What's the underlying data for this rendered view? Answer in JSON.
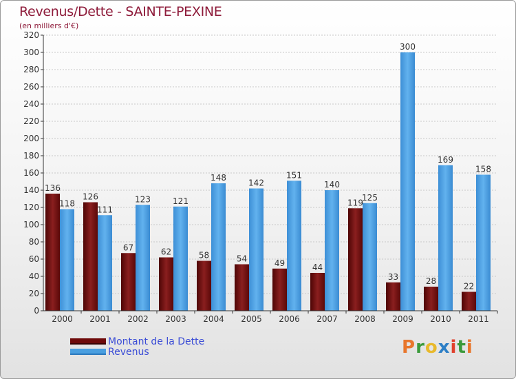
{
  "title": "Revenus/Dette - SAINTE-PEXINE",
  "subtitle": "(en milliers d'€)",
  "brand": [
    "P",
    "r",
    "o",
    "x",
    "i",
    "t",
    "i"
  ],
  "colors": {
    "dette": "#6e0a0a",
    "revenus": "#4a9fe0",
    "title": "#8e1b3a",
    "legend_text": "#3a4cd6",
    "brand_letters": [
      "#e8762c",
      "#3b9a3b",
      "#e8b92c",
      "#2d7fc6",
      "#e0402c",
      "#3b9a3b",
      "#e8762c"
    ]
  },
  "chart_data": {
    "type": "bar",
    "categories": [
      "2000",
      "2001",
      "2002",
      "2003",
      "2004",
      "2005",
      "2006",
      "2007",
      "2008",
      "2009",
      "2010",
      "2011"
    ],
    "series": [
      {
        "name": "Montant de la Dette",
        "values": [
          136,
          126,
          67,
          62,
          58,
          54,
          49,
          44,
          119,
          33,
          28,
          22
        ]
      },
      {
        "name": "Revenus",
        "values": [
          118,
          111,
          123,
          121,
          148,
          142,
          151,
          140,
          125,
          300,
          169,
          158
        ]
      }
    ],
    "ylim": [
      0,
      320
    ],
    "yticks": [
      "0",
      "20",
      "40",
      "60",
      "80",
      "100",
      "120",
      "140",
      "160",
      "180",
      "200",
      "220",
      "240",
      "260",
      "280",
      "300",
      "320"
    ],
    "grid": true,
    "legend_position": "bottom-left"
  }
}
